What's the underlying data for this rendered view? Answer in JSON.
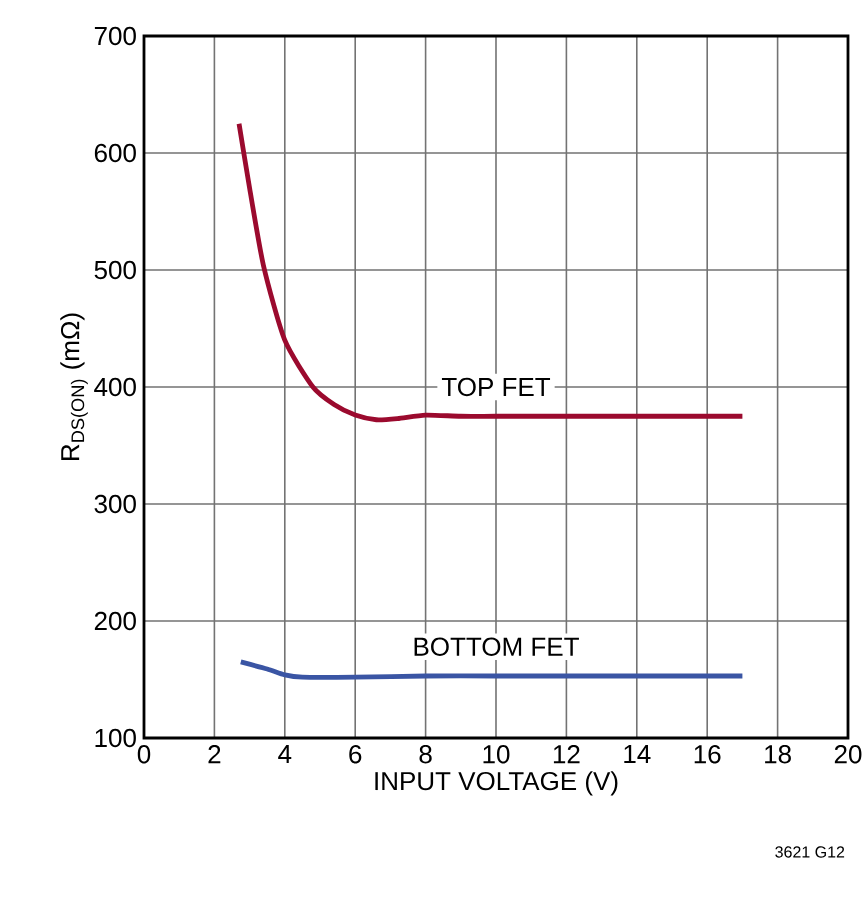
{
  "chart_data": {
    "type": "line",
    "xlabel": "INPUT VOLTAGE (V)",
    "ylabel": "R$_{DS(ON)}$ (mΩ)",
    "xlim": [
      0,
      20
    ],
    "xticks": [
      0,
      2,
      4,
      6,
      8,
      10,
      12,
      14,
      16,
      18,
      20
    ],
    "ylim": [
      100,
      700
    ],
    "yticks": [
      100,
      200,
      300,
      400,
      500,
      600,
      700
    ],
    "grid": true,
    "legend": false,
    "series": [
      {
        "name": "TOP FET",
        "color": "#9b0a2e",
        "x": [
          2.7,
          3.0,
          3.4,
          4.0,
          4.8,
          5.4,
          6.0,
          6.6,
          7.2,
          8.0,
          9.0,
          10,
          12,
          14,
          16,
          17
        ],
        "values": [
          625,
          570,
          503,
          440,
          400,
          385,
          376,
          372,
          373,
          376,
          375,
          375,
          375,
          375,
          375,
          375
        ]
      },
      {
        "name": "BOTTOM FET",
        "color": "#3a55a4",
        "x": [
          2.75,
          3.5,
          4.0,
          4.5,
          6.0,
          8,
          10,
          12,
          14,
          16,
          17
        ],
        "values": [
          165,
          159,
          154,
          152,
          152,
          153,
          153,
          153,
          153,
          153,
          153
        ]
      }
    ],
    "annotations": [
      "3621 G12"
    ]
  }
}
